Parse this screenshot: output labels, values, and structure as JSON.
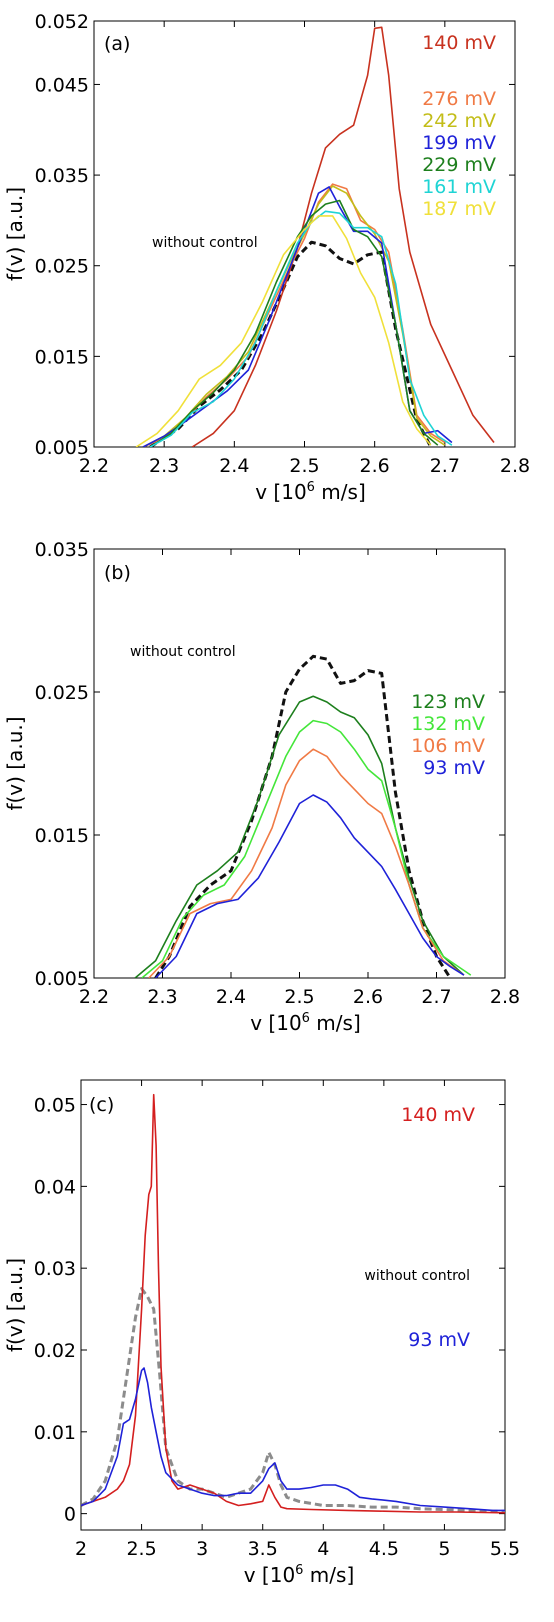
{
  "chart_data": [
    {
      "panel": "(a)",
      "type": "line",
      "xlabel": "v [10^6 m/s]",
      "ylabel": "f(v) [a.u.]",
      "xlim": [
        2.2,
        2.8
      ],
      "ylim": [
        0.005,
        0.052
      ],
      "xticks": [
        2.2,
        2.3,
        2.4,
        2.5,
        2.6,
        2.7,
        2.8
      ],
      "yticks": [
        0.005,
        0.015,
        0.025,
        0.035,
        0.045,
        0.052
      ],
      "ytick_labels": [
        "0.005",
        "0.015",
        "0.025",
        "0.035",
        "0.045",
        "0.052"
      ],
      "annotation": "without control",
      "series": [
        {
          "name": "without control",
          "color": "#111111",
          "dashed": true,
          "x": [
            2.28,
            2.3,
            2.32,
            2.35,
            2.38,
            2.41,
            2.44,
            2.47,
            2.49,
            2.51,
            2.53,
            2.55,
            2.57,
            2.59,
            2.61,
            2.63,
            2.66,
            2.68
          ],
          "y": [
            0.005,
            0.006,
            0.007,
            0.0095,
            0.0113,
            0.0135,
            0.0175,
            0.0225,
            0.026,
            0.0276,
            0.0272,
            0.0258,
            0.0252,
            0.0262,
            0.0265,
            0.018,
            0.008,
            0.005
          ]
        },
        {
          "name": "140 mV",
          "color": "#c8321f",
          "x": [
            2.34,
            2.37,
            2.4,
            2.43,
            2.46,
            2.49,
            2.51,
            2.53,
            2.55,
            2.57,
            2.59,
            2.6,
            2.61,
            2.62,
            2.635,
            2.65,
            2.68,
            2.71,
            2.74,
            2.77
          ],
          "y": [
            0.005,
            0.0065,
            0.009,
            0.014,
            0.02,
            0.027,
            0.033,
            0.038,
            0.0395,
            0.0405,
            0.046,
            0.0512,
            0.0513,
            0.046,
            0.0335,
            0.0265,
            0.0185,
            0.0135,
            0.0085,
            0.0055
          ]
        },
        {
          "name": "276 mV",
          "color": "#f07a45",
          "x": [
            2.27,
            2.3,
            2.33,
            2.36,
            2.39,
            2.42,
            2.45,
            2.48,
            2.5,
            2.52,
            2.54,
            2.56,
            2.58,
            2.6,
            2.62,
            2.64,
            2.66,
            2.68,
            2.7
          ],
          "y": [
            0.005,
            0.006,
            0.008,
            0.0105,
            0.0125,
            0.015,
            0.02,
            0.025,
            0.028,
            0.032,
            0.034,
            0.0335,
            0.03,
            0.029,
            0.0265,
            0.018,
            0.0085,
            0.0065,
            0.0055
          ]
        },
        {
          "name": "242 mV",
          "color": "#c3bd19",
          "x": [
            2.27,
            2.3,
            2.33,
            2.36,
            2.39,
            2.42,
            2.45,
            2.48,
            2.5,
            2.52,
            2.54,
            2.56,
            2.58,
            2.6,
            2.62,
            2.64,
            2.66,
            2.68,
            2.7
          ],
          "y": [
            0.005,
            0.0062,
            0.0082,
            0.0108,
            0.0128,
            0.0155,
            0.0205,
            0.0255,
            0.0285,
            0.0318,
            0.0338,
            0.033,
            0.0305,
            0.0285,
            0.0255,
            0.0175,
            0.0082,
            0.0062,
            0.0052
          ]
        },
        {
          "name": "199 mV",
          "color": "#1f22d8",
          "x": [
            2.27,
            2.3,
            2.33,
            2.36,
            2.39,
            2.42,
            2.45,
            2.48,
            2.5,
            2.52,
            2.535,
            2.55,
            2.57,
            2.59,
            2.61,
            2.63,
            2.65,
            2.67,
            2.69,
            2.71
          ],
          "y": [
            0.005,
            0.0062,
            0.0078,
            0.0095,
            0.0112,
            0.0135,
            0.019,
            0.025,
            0.029,
            0.033,
            0.0337,
            0.0315,
            0.0288,
            0.0288,
            0.0275,
            0.0185,
            0.009,
            0.0065,
            0.0068,
            0.0055
          ]
        },
        {
          "name": "229 mV",
          "color": "#1d7f1d",
          "x": [
            2.28,
            2.31,
            2.34,
            2.37,
            2.4,
            2.43,
            2.46,
            2.49,
            2.51,
            2.53,
            2.55,
            2.57,
            2.59,
            2.61,
            2.63,
            2.65,
            2.67,
            2.69
          ],
          "y": [
            0.005,
            0.0065,
            0.009,
            0.011,
            0.0135,
            0.0175,
            0.0232,
            0.0282,
            0.0305,
            0.0318,
            0.0322,
            0.029,
            0.0282,
            0.026,
            0.0185,
            0.009,
            0.0065,
            0.0052
          ]
        },
        {
          "name": "161 mV",
          "color": "#1fd4d4",
          "x": [
            2.28,
            2.31,
            2.34,
            2.37,
            2.4,
            2.43,
            2.46,
            2.49,
            2.51,
            2.53,
            2.55,
            2.57,
            2.59,
            2.61,
            2.63,
            2.65,
            2.67,
            2.69,
            2.71
          ],
          "y": [
            0.005,
            0.0063,
            0.0088,
            0.01,
            0.0125,
            0.0165,
            0.0222,
            0.0275,
            0.0298,
            0.031,
            0.0308,
            0.0292,
            0.0292,
            0.0282,
            0.023,
            0.0125,
            0.0085,
            0.0062,
            0.0052
          ]
        },
        {
          "name": "187 mV",
          "color": "#f0e03a",
          "x": [
            2.26,
            2.29,
            2.32,
            2.35,
            2.38,
            2.41,
            2.44,
            2.47,
            2.5,
            2.52,
            2.54,
            2.56,
            2.58,
            2.6,
            2.62,
            2.64,
            2.66,
            2.68
          ],
          "y": [
            0.005,
            0.0065,
            0.009,
            0.0125,
            0.014,
            0.0165,
            0.021,
            0.0262,
            0.029,
            0.0305,
            0.0305,
            0.028,
            0.0242,
            0.0215,
            0.0165,
            0.01,
            0.007,
            0.0052
          ]
        }
      ]
    },
    {
      "panel": "(b)",
      "type": "line",
      "xlabel": "v [10^6 m/s]",
      "ylabel": "f(v) [a.u.]",
      "xlim": [
        2.2,
        2.8
      ],
      "ylim": [
        0.005,
        0.035
      ],
      "xticks": [
        2.2,
        2.3,
        2.4,
        2.5,
        2.6,
        2.7,
        2.8
      ],
      "yticks": [
        0.005,
        0.015,
        0.025,
        0.035
      ],
      "ytick_labels": [
        "0.005",
        "0.015",
        "0.025",
        "0.035"
      ],
      "annotation": "without control",
      "series": [
        {
          "name": "without control",
          "color": "#111111",
          "dashed": true,
          "x": [
            2.29,
            2.31,
            2.34,
            2.37,
            2.4,
            2.43,
            2.46,
            2.48,
            2.5,
            2.52,
            2.54,
            2.56,
            2.58,
            2.6,
            2.62,
            2.64,
            2.66,
            2.68,
            2.7,
            2.72
          ],
          "y": [
            0.005,
            0.0065,
            0.01,
            0.0115,
            0.0125,
            0.016,
            0.0205,
            0.025,
            0.0266,
            0.0275,
            0.0273,
            0.0256,
            0.0258,
            0.0265,
            0.0263,
            0.018,
            0.0125,
            0.009,
            0.0065,
            0.005
          ]
        },
        {
          "name": "123 mV",
          "color": "#1d7f1d",
          "x": [
            2.26,
            2.29,
            2.32,
            2.35,
            2.38,
            2.41,
            2.44,
            2.47,
            2.5,
            2.52,
            2.54,
            2.56,
            2.58,
            2.6,
            2.62,
            2.64,
            2.66,
            2.68,
            2.71,
            2.74
          ],
          "y": [
            0.005,
            0.0062,
            0.009,
            0.0115,
            0.0125,
            0.0138,
            0.0175,
            0.022,
            0.0243,
            0.0247,
            0.0243,
            0.0236,
            0.0232,
            0.022,
            0.02,
            0.0155,
            0.012,
            0.009,
            0.0065,
            0.0052
          ]
        },
        {
          "name": "132 mV",
          "color": "#44e63a",
          "x": [
            2.27,
            2.3,
            2.33,
            2.36,
            2.39,
            2.42,
            2.45,
            2.48,
            2.5,
            2.52,
            2.54,
            2.56,
            2.58,
            2.6,
            2.62,
            2.64,
            2.66,
            2.68,
            2.71,
            2.75
          ],
          "y": [
            0.005,
            0.0062,
            0.0092,
            0.0108,
            0.0115,
            0.0135,
            0.017,
            0.0205,
            0.0222,
            0.023,
            0.0228,
            0.0222,
            0.021,
            0.0196,
            0.0188,
            0.0155,
            0.0115,
            0.0085,
            0.0065,
            0.0052
          ]
        },
        {
          "name": "106 mV",
          "color": "#f07a45",
          "x": [
            2.28,
            2.31,
            2.34,
            2.37,
            2.4,
            2.43,
            2.46,
            2.48,
            2.5,
            2.52,
            2.54,
            2.56,
            2.58,
            2.6,
            2.62,
            2.64,
            2.66,
            2.68,
            2.71,
            2.74
          ],
          "y": [
            0.005,
            0.0065,
            0.0095,
            0.0102,
            0.0105,
            0.0125,
            0.0155,
            0.0185,
            0.0202,
            0.021,
            0.0205,
            0.0192,
            0.0182,
            0.0172,
            0.0165,
            0.0142,
            0.0115,
            0.0085,
            0.0062,
            0.0052
          ]
        },
        {
          "name": "93 mV",
          "color": "#1f22d8",
          "x": [
            2.29,
            2.32,
            2.35,
            2.38,
            2.41,
            2.44,
            2.47,
            2.5,
            2.52,
            2.54,
            2.56,
            2.58,
            2.6,
            2.62,
            2.64,
            2.66,
            2.68,
            2.7,
            2.72,
            2.74
          ],
          "y": [
            0.005,
            0.0065,
            0.0095,
            0.0102,
            0.0105,
            0.012,
            0.0145,
            0.0172,
            0.0178,
            0.0173,
            0.0162,
            0.0148,
            0.0138,
            0.0128,
            0.0112,
            0.0095,
            0.0078,
            0.0065,
            0.0058,
            0.0052
          ]
        }
      ]
    },
    {
      "panel": "(c)",
      "type": "line",
      "xlabel": "v [10^6 m/s]",
      "ylabel": "f(v) [a.u.]",
      "xlim": [
        2.0,
        5.5
      ],
      "ylim": [
        -0.002,
        0.053
      ],
      "xticks": [
        2,
        2.5,
        3,
        3.5,
        4,
        4.5,
        5,
        5.5
      ],
      "xtick_labels": [
        "2",
        "2.5",
        "3",
        "3.5",
        "4",
        "4.5",
        "5",
        "5.5"
      ],
      "yticks": [
        0,
        0.01,
        0.02,
        0.03,
        0.04,
        0.05
      ],
      "ytick_labels": [
        "0",
        "0.01",
        "0.02",
        "0.03",
        "0.04",
        "0.05"
      ],
      "annotation": "without control",
      "series": [
        {
          "name": "without control",
          "color": "#8c8c8c",
          "dashed": true,
          "x": [
            2.0,
            2.1,
            2.2,
            2.3,
            2.38,
            2.45,
            2.5,
            2.55,
            2.6,
            2.65,
            2.7,
            2.8,
            2.9,
            3.0,
            3.1,
            3.2,
            3.3,
            3.4,
            3.5,
            3.55,
            3.6,
            3.65,
            3.7,
            3.8,
            4.0,
            4.2,
            4.4,
            4.6,
            4.8,
            5.0,
            5.2,
            5.4,
            5.5
          ],
          "y": [
            0.001,
            0.0018,
            0.004,
            0.009,
            0.017,
            0.024,
            0.0275,
            0.0265,
            0.025,
            0.017,
            0.008,
            0.004,
            0.003,
            0.003,
            0.0025,
            0.002,
            0.0025,
            0.003,
            0.005,
            0.0075,
            0.006,
            0.0035,
            0.002,
            0.0015,
            0.001,
            0.001,
            0.0008,
            0.0008,
            0.0006,
            0.0005,
            0.0004,
            0.0003,
            0.0003
          ]
        },
        {
          "name": "140 mV",
          "color": "#d41f1f",
          "x": [
            2.0,
            2.1,
            2.2,
            2.3,
            2.35,
            2.4,
            2.45,
            2.5,
            2.53,
            2.56,
            2.58,
            2.6,
            2.62,
            2.64,
            2.66,
            2.7,
            2.75,
            2.8,
            2.9,
            3.0,
            3.1,
            3.2,
            3.3,
            3.4,
            3.5,
            3.55,
            3.6,
            3.65,
            3.7,
            3.9,
            4.2,
            4.5,
            4.8,
            5.1,
            5.5
          ],
          "y": [
            0.001,
            0.0015,
            0.002,
            0.003,
            0.004,
            0.006,
            0.012,
            0.025,
            0.034,
            0.039,
            0.04,
            0.0512,
            0.045,
            0.03,
            0.018,
            0.008,
            0.004,
            0.003,
            0.0035,
            0.003,
            0.0025,
            0.0015,
            0.001,
            0.0012,
            0.0015,
            0.0035,
            0.002,
            0.0008,
            0.0006,
            0.0005,
            0.0004,
            0.0003,
            0.0002,
            0.0002,
            0.0001
          ]
        },
        {
          "name": "93 mV",
          "color": "#1f22d8",
          "x": [
            2.0,
            2.1,
            2.2,
            2.3,
            2.35,
            2.4,
            2.45,
            2.5,
            2.52,
            2.55,
            2.58,
            2.62,
            2.66,
            2.7,
            2.8,
            2.9,
            3.0,
            3.1,
            3.2,
            3.3,
            3.4,
            3.5,
            3.55,
            3.6,
            3.65,
            3.7,
            3.8,
            3.9,
            4.0,
            4.1,
            4.2,
            4.25,
            4.3,
            4.4,
            4.6,
            4.8,
            5.0,
            5.2,
            5.4,
            5.5
          ],
          "y": [
            0.001,
            0.0015,
            0.003,
            0.007,
            0.011,
            0.0115,
            0.014,
            0.0175,
            0.0178,
            0.016,
            0.013,
            0.01,
            0.007,
            0.005,
            0.0035,
            0.003,
            0.0025,
            0.0022,
            0.0022,
            0.0025,
            0.0025,
            0.004,
            0.0055,
            0.0062,
            0.004,
            0.003,
            0.003,
            0.0032,
            0.0035,
            0.0035,
            0.003,
            0.0025,
            0.002,
            0.0018,
            0.0015,
            0.001,
            0.0008,
            0.0006,
            0.0004,
            0.0004
          ]
        }
      ]
    }
  ]
}
